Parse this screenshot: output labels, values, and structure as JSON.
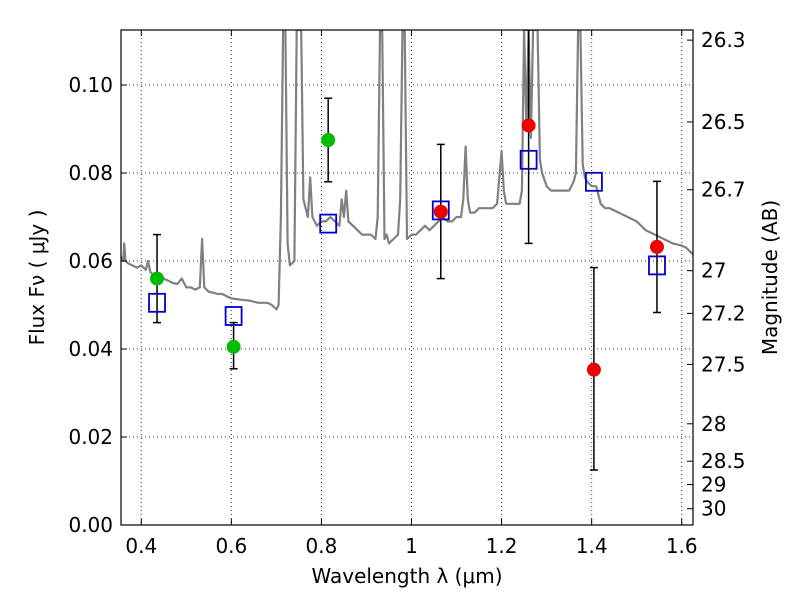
{
  "chart_data": {
    "type": "scatter",
    "title": "",
    "xlabel": "Wavelength  λ (μm)",
    "ylabel": "Flux  Fν  ( μJy )",
    "y2label": "Magnitude (AB)",
    "xlim": [
      0.355,
      1.625
    ],
    "ylim": [
      0.0,
      0.1125
    ],
    "grid": true,
    "x_ticks": [
      0.4,
      0.6,
      0.8,
      1.0,
      1.2,
      1.4,
      1.6
    ],
    "x_tick_labels": [
      "0.4",
      "0.6",
      "0.8",
      "1",
      "1.2",
      "1.4",
      "1.6"
    ],
    "y_ticks": [
      0.0,
      0.02,
      0.04,
      0.06,
      0.08,
      0.1
    ],
    "y_tick_labels": [
      "0.00",
      "0.02",
      "0.04",
      "0.06",
      "0.08",
      "0.10"
    ],
    "y2_ticks": [
      {
        "label": "26.3",
        "flux": 0.1102
      },
      {
        "label": "26.5",
        "flux": 0.0916
      },
      {
        "label": "26.7",
        "flux": 0.0762
      },
      {
        "label": "27",
        "flux": 0.0578
      },
      {
        "label": "27.2",
        "flux": 0.0481
      },
      {
        "label": "27.5",
        "flux": 0.0365
      },
      {
        "label": "28",
        "flux": 0.023
      },
      {
        "label": "28.5",
        "flux": 0.0145
      },
      {
        "label": "29",
        "flux": 0.0092
      },
      {
        "label": "30",
        "flux": 0.0037
      }
    ],
    "colors": {
      "model_line": "#808080",
      "green_points": "#00bb00",
      "red_points": "#ee0000",
      "model_boxes": "#0000cc",
      "errorbars": "#000000"
    },
    "series": [
      {
        "kind": "line",
        "points": [
          [
            0.355,
            0.061
          ],
          [
            0.36,
            0.06
          ],
          [
            0.362,
            0.064
          ],
          [
            0.365,
            0.06
          ],
          [
            0.37,
            0.0595
          ],
          [
            0.38,
            0.059
          ],
          [
            0.39,
            0.0585
          ],
          [
            0.4,
            0.059
          ],
          [
            0.41,
            0.058
          ],
          [
            0.415,
            0.06
          ],
          [
            0.42,
            0.0575
          ],
          [
            0.43,
            0.0565
          ],
          [
            0.44,
            0.056
          ],
          [
            0.45,
            0.056
          ],
          [
            0.46,
            0.0555
          ],
          [
            0.47,
            0.055
          ],
          [
            0.48,
            0.0548
          ],
          [
            0.49,
            0.056
          ],
          [
            0.5,
            0.054
          ],
          [
            0.51,
            0.054
          ],
          [
            0.52,
            0.0535
          ],
          [
            0.53,
            0.054
          ],
          [
            0.535,
            0.065
          ],
          [
            0.54,
            0.054
          ],
          [
            0.55,
            0.053
          ],
          [
            0.56,
            0.0528
          ],
          [
            0.57,
            0.0525
          ],
          [
            0.58,
            0.0525
          ],
          [
            0.59,
            0.052
          ],
          [
            0.6,
            0.0515
          ],
          [
            0.62,
            0.0512
          ],
          [
            0.64,
            0.051
          ],
          [
            0.66,
            0.0505
          ],
          [
            0.68,
            0.0505
          ],
          [
            0.69,
            0.05
          ],
          [
            0.7,
            0.049
          ],
          [
            0.705,
            0.05
          ],
          [
            0.71,
            0.07
          ],
          [
            0.715,
            0.1125
          ],
          [
            0.72,
            0.1125
          ],
          [
            0.725,
            0.064
          ],
          [
            0.73,
            0.059
          ],
          [
            0.74,
            0.06
          ],
          [
            0.745,
            0.1125
          ],
          [
            0.755,
            0.1125
          ],
          [
            0.76,
            0.074
          ],
          [
            0.77,
            0.07
          ],
          [
            0.775,
            0.079
          ],
          [
            0.78,
            0.07
          ],
          [
            0.79,
            0.068
          ],
          [
            0.8,
            0.069
          ],
          [
            0.81,
            0.069
          ],
          [
            0.82,
            0.07
          ],
          [
            0.83,
            0.069
          ],
          [
            0.84,
            0.068
          ],
          [
            0.845,
            0.074
          ],
          [
            0.85,
            0.07
          ],
          [
            0.855,
            0.076
          ],
          [
            0.86,
            0.069
          ],
          [
            0.87,
            0.068
          ],
          [
            0.88,
            0.067
          ],
          [
            0.89,
            0.066
          ],
          [
            0.9,
            0.066
          ],
          [
            0.91,
            0.066
          ],
          [
            0.92,
            0.065
          ],
          [
            0.925,
            0.07
          ],
          [
            0.93,
            0.1125
          ],
          [
            0.935,
            0.1125
          ],
          [
            0.94,
            0.065
          ],
          [
            0.945,
            0.066
          ],
          [
            0.95,
            0.064
          ],
          [
            0.96,
            0.065
          ],
          [
            0.97,
            0.066
          ],
          [
            0.975,
            0.074
          ],
          [
            0.98,
            0.1125
          ],
          [
            0.985,
            0.1125
          ],
          [
            0.99,
            0.065
          ],
          [
            1.0,
            0.066
          ],
          [
            1.01,
            0.066
          ],
          [
            1.02,
            0.067
          ],
          [
            1.03,
            0.068
          ],
          [
            1.04,
            0.067
          ],
          [
            1.05,
            0.068
          ],
          [
            1.06,
            0.069
          ],
          [
            1.07,
            0.07
          ],
          [
            1.08,
            0.069
          ],
          [
            1.09,
            0.069
          ],
          [
            1.1,
            0.07
          ],
          [
            1.11,
            0.07
          ],
          [
            1.115,
            0.074
          ],
          [
            1.12,
            0.086
          ],
          [
            1.125,
            0.074
          ],
          [
            1.13,
            0.071
          ],
          [
            1.14,
            0.071
          ],
          [
            1.15,
            0.072
          ],
          [
            1.16,
            0.072
          ],
          [
            1.17,
            0.072
          ],
          [
            1.18,
            0.072
          ],
          [
            1.19,
            0.073
          ],
          [
            1.2,
            0.085
          ],
          [
            1.205,
            0.076
          ],
          [
            1.21,
            0.073
          ],
          [
            1.22,
            0.073
          ],
          [
            1.23,
            0.073
          ],
          [
            1.24,
            0.073
          ],
          [
            1.245,
            0.076
          ],
          [
            1.25,
            0.1125
          ],
          [
            1.255,
            0.09
          ],
          [
            1.26,
            0.1125
          ],
          [
            1.265,
            0.088
          ],
          [
            1.27,
            0.1125
          ],
          [
            1.28,
            0.1125
          ],
          [
            1.285,
            0.083
          ],
          [
            1.29,
            0.08
          ],
          [
            1.3,
            0.077
          ],
          [
            1.31,
            0.076
          ],
          [
            1.32,
            0.076
          ],
          [
            1.33,
            0.076
          ],
          [
            1.34,
            0.076
          ],
          [
            1.35,
            0.076
          ],
          [
            1.36,
            0.078
          ],
          [
            1.365,
            0.08
          ],
          [
            1.37,
            0.1125
          ],
          [
            1.375,
            0.1125
          ],
          [
            1.38,
            0.082
          ],
          [
            1.385,
            0.079
          ],
          [
            1.39,
            0.078
          ],
          [
            1.4,
            0.077
          ],
          [
            1.41,
            0.077
          ],
          [
            1.42,
            0.073
          ],
          [
            1.43,
            0.072
          ],
          [
            1.44,
            0.072
          ],
          [
            1.46,
            0.071
          ],
          [
            1.48,
            0.07
          ],
          [
            1.5,
            0.069
          ],
          [
            1.52,
            0.067
          ],
          [
            1.54,
            0.066
          ],
          [
            1.56,
            0.065
          ],
          [
            1.58,
            0.064
          ],
          [
            1.6,
            0.0635
          ],
          [
            1.61,
            0.063
          ],
          [
            1.62,
            0.062
          ],
          [
            1.625,
            0.0615
          ]
        ]
      },
      {
        "kind": "points",
        "points": [
          {
            "x": 0.435,
            "y": 0.056,
            "ylo": 0.046,
            "yhi": 0.066
          },
          {
            "x": 0.605,
            "y": 0.0405,
            "ylo": 0.0355,
            "yhi": 0.046
          },
          {
            "x": 0.815,
            "y": 0.0875,
            "ylo": 0.078,
            "yhi": 0.097
          }
        ]
      },
      {
        "kind": "points",
        "points": [
          {
            "x": 1.065,
            "y": 0.0712,
            "ylo": 0.056,
            "yhi": 0.0865
          },
          {
            "x": 1.26,
            "y": 0.0908,
            "ylo": 0.064,
            "yhi": 0.1125
          },
          {
            "x": 1.405,
            "y": 0.0353,
            "ylo": 0.0125,
            "yhi": 0.0585
          },
          {
            "x": 1.545,
            "y": 0.0632,
            "ylo": 0.0483,
            "yhi": 0.0781
          }
        ]
      },
      {
        "kind": "boxes",
        "points": [
          {
            "x": 0.435,
            "y": 0.0505
          },
          {
            "x": 0.605,
            "y": 0.0475
          },
          {
            "x": 0.815,
            "y": 0.0685
          },
          {
            "x": 1.065,
            "y": 0.0715
          },
          {
            "x": 1.26,
            "y": 0.083
          },
          {
            "x": 1.405,
            "y": 0.078
          },
          {
            "x": 1.545,
            "y": 0.059
          }
        ]
      }
    ]
  }
}
